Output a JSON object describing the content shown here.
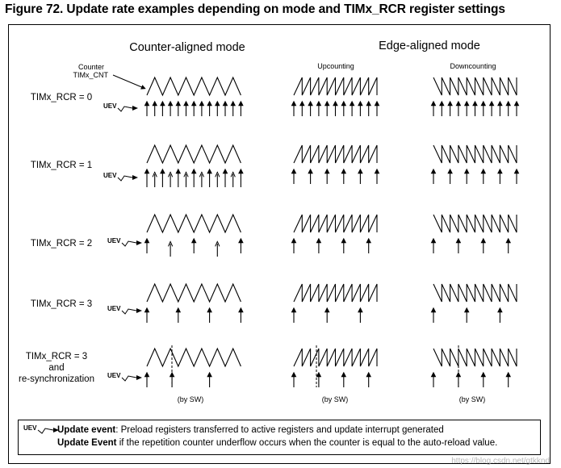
{
  "figure_title": "Figure 72. Update rate examples depending on mode and TIMx_RCR register settings",
  "headers": {
    "counter_aligned": "Counter-aligned mode",
    "edge_aligned": "Edge-aligned mode",
    "upcounting": "Upcounting",
    "downcounting": "Downcounting"
  },
  "counter_label": [
    "Counter",
    "TIMx_CNT"
  ],
  "uev_label": "UEV",
  "rows": [
    {
      "label": [
        "TIMx_RCR = 0"
      ]
    },
    {
      "label": [
        "TIMx_RCR = 1"
      ]
    },
    {
      "label": [
        "TIMx_RCR = 2"
      ]
    },
    {
      "label": [
        "TIMx_RCR = 3"
      ]
    },
    {
      "label": [
        "TIMx_RCR = 3",
        "and",
        "re-synchronization"
      ]
    }
  ],
  "by_sw": "(by SW)",
  "legend": {
    "uev": "UEV",
    "line1_bold": "Update event",
    "line1_text": ": Preload registers transferred to active registers and update interrupt generated",
    "line2_bold": "Update Event",
    "line2_text": " if the repetition counter underflow occurs when the counter is equal to the auto-reload value."
  },
  "watermark": "https://blog.csdn.net/gtkknd"
}
